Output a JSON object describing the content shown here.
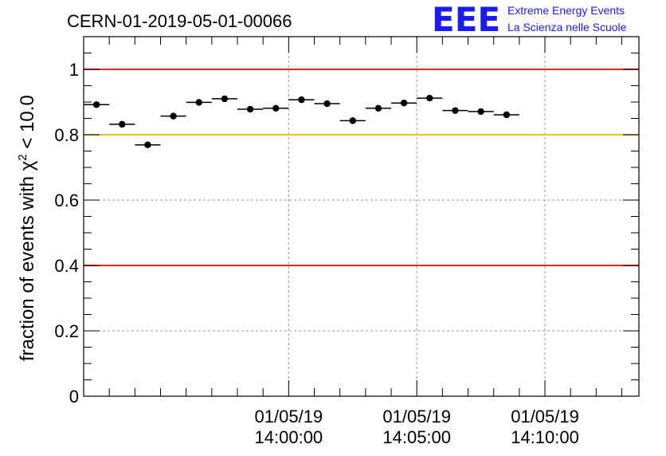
{
  "chart_data": {
    "type": "scatter",
    "title": "CERN-01-2019-05-01-00066",
    "ylabel": "fraction of events with χ² < 10.0",
    "ylabel_parts": {
      "before": "fraction of events with χ",
      "sup": "2",
      "after": " < 10.0"
    },
    "ylim": [
      0,
      1.1
    ],
    "xlim": [
      "2019-05-01 13:52:00",
      "2019-05-01 14:13:40"
    ],
    "grid": true,
    "y_ticks": [
      0,
      0.2,
      0.4,
      0.6,
      0.8,
      1.0
    ],
    "y_tick_labels": [
      "0",
      "0.2",
      "0.4",
      "0.6",
      "0.8",
      "1"
    ],
    "x_ticks": [
      "2019-05-01 14:00:00",
      "2019-05-01 14:05:00",
      "2019-05-01 14:10:00"
    ],
    "x_tick_labels": [
      {
        "date": "01/05/19",
        "time": "14:00:00"
      },
      {
        "date": "01/05/19",
        "time": "14:05:00"
      },
      {
        "date": "01/05/19",
        "time": "14:10:00"
      }
    ],
    "reference_lines": [
      {
        "y": 1.0,
        "color": "#e8251f"
      },
      {
        "y": 0.8,
        "color": "#f7c200"
      },
      {
        "y": 0.4,
        "color": "#e8251f"
      }
    ],
    "series": [
      {
        "x_start": [
          "2019-05-01 13:52:00",
          "2019-05-01 13:53:00",
          "2019-05-01 13:54:00",
          "2019-05-01 13:55:00",
          "2019-05-01 13:56:00",
          "2019-05-01 13:57:00",
          "2019-05-01 13:58:00",
          "2019-05-01 13:59:00",
          "2019-05-01 14:00:00",
          "2019-05-01 14:01:00",
          "2019-05-01 14:02:00",
          "2019-05-01 14:03:00",
          "2019-05-01 14:04:00",
          "2019-05-01 14:05:00",
          "2019-05-01 14:06:00",
          "2019-05-01 14:07:00",
          "2019-05-01 14:08:00"
        ],
        "y": [
          0.892,
          0.832,
          0.769,
          0.857,
          0.899,
          0.91,
          0.878,
          0.881,
          0.907,
          0.895,
          0.843,
          0.881,
          0.897,
          0.912,
          0.874,
          0.871,
          0.861
        ]
      }
    ],
    "bin_width_minutes": 1
  },
  "logo": {
    "letters": "EEE",
    "line1": "Extreme Energy Events",
    "line2": "La Scienza nelle Scuole",
    "color": "#1a1aff"
  }
}
